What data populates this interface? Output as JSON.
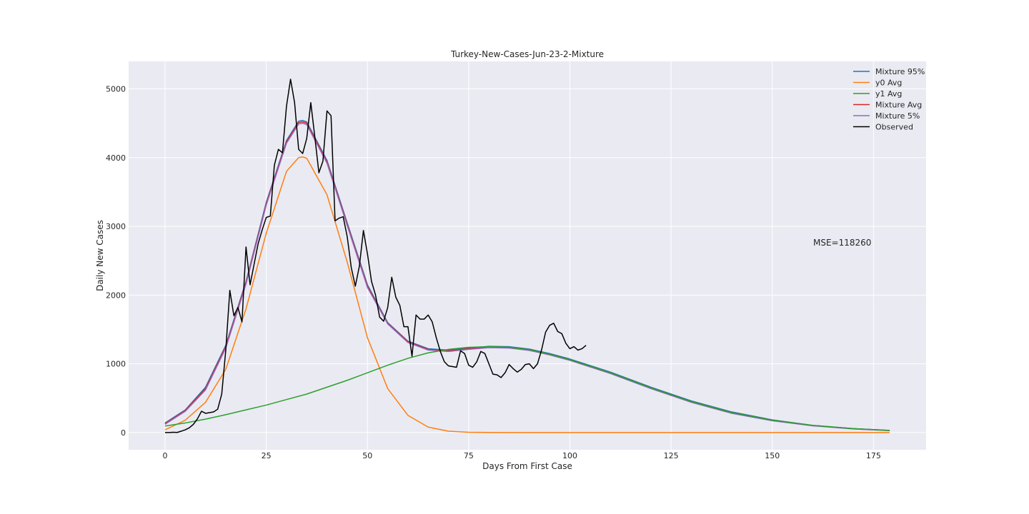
{
  "chart_data": {
    "type": "line",
    "title": "Turkey-New-Cases-Jun-23-2-Mixture",
    "xlabel": "Days From First Case",
    "ylabel": "Daily New Cases",
    "xlim": [
      -9,
      188
    ],
    "ylim": [
      -250,
      5400
    ],
    "xticks": [
      0,
      25,
      50,
      75,
      100,
      125,
      150,
      175
    ],
    "yticks": [
      0,
      1000,
      2000,
      3000,
      4000,
      5000
    ],
    "grid": true,
    "legend_position": "top-right",
    "annotation": "MSE=118260",
    "series": [
      {
        "name": "Mixture 95%",
        "color": "#1f77b4",
        "x": [
          0,
          5,
          10,
          15,
          20,
          25,
          30,
          33,
          34,
          35,
          40,
          45,
          50,
          55,
          60,
          65,
          70,
          75,
          80,
          85,
          90,
          95,
          100,
          110,
          120,
          130,
          140,
          150,
          160,
          170,
          179
        ],
        "y": [
          140,
          330,
          660,
          1270,
          2200,
          3350,
          4250,
          4530,
          4540,
          4520,
          3960,
          3050,
          2150,
          1600,
          1330,
          1220,
          1200,
          1230,
          1255,
          1250,
          1215,
          1150,
          1070,
          880,
          660,
          460,
          300,
          185,
          105,
          58,
          32
        ]
      },
      {
        "name": "y0 Avg",
        "color": "#ff7f0e",
        "x": [
          0,
          5,
          10,
          15,
          20,
          25,
          30,
          33,
          34,
          35,
          40,
          45,
          50,
          55,
          60,
          65,
          70,
          75,
          80,
          90,
          100,
          120,
          150,
          179
        ],
        "y": [
          40,
          180,
          440,
          920,
          1800,
          2900,
          3800,
          4000,
          4010,
          3990,
          3460,
          2480,
          1380,
          640,
          250,
          80,
          20,
          5,
          2,
          0,
          0,
          0,
          0,
          0
        ]
      },
      {
        "name": "y1 Avg",
        "color": "#2ca02c",
        "x": [
          0,
          5,
          10,
          15,
          20,
          25,
          30,
          35,
          40,
          45,
          50,
          55,
          60,
          65,
          70,
          75,
          80,
          85,
          90,
          95,
          100,
          110,
          120,
          130,
          140,
          150,
          160,
          170,
          179
        ],
        "y": [
          95,
          140,
          195,
          260,
          330,
          400,
          480,
          560,
          660,
          760,
          870,
          980,
          1080,
          1160,
          1210,
          1240,
          1250,
          1240,
          1205,
          1140,
          1060,
          870,
          650,
          450,
          290,
          180,
          105,
          58,
          30
        ]
      },
      {
        "name": "Mixture Avg",
        "color": "#d62728",
        "x": [
          0,
          5,
          10,
          15,
          20,
          25,
          30,
          33,
          34,
          35,
          40,
          45,
          50,
          55,
          60,
          65,
          70,
          75,
          80,
          85,
          90,
          95,
          100,
          110,
          120,
          130,
          140,
          150,
          160,
          170,
          179
        ],
        "y": [
          130,
          320,
          640,
          1250,
          2180,
          3330,
          4230,
          4510,
          4520,
          4500,
          3940,
          3030,
          2130,
          1590,
          1320,
          1210,
          1190,
          1220,
          1245,
          1240,
          1205,
          1140,
          1060,
          870,
          650,
          450,
          290,
          180,
          102,
          56,
          30
        ]
      },
      {
        "name": "Mixture 5%",
        "color": "#9467bd",
        "x": [
          0,
          5,
          10,
          15,
          20,
          25,
          30,
          33,
          34,
          35,
          40,
          45,
          50,
          55,
          60,
          65,
          70,
          75,
          80,
          85,
          90,
          95,
          100,
          110,
          120,
          130,
          140,
          150,
          160,
          170,
          179
        ],
        "y": [
          120,
          310,
          620,
          1230,
          2160,
          3310,
          4210,
          4490,
          4500,
          4480,
          3920,
          3010,
          2110,
          1580,
          1310,
          1200,
          1180,
          1210,
          1235,
          1230,
          1195,
          1130,
          1050,
          860,
          640,
          440,
          280,
          172,
          98,
          53,
          28
        ]
      },
      {
        "name": "Observed",
        "color": "#000000",
        "x": [
          0,
          1,
          2,
          3,
          4,
          5,
          6,
          7,
          8,
          9,
          10,
          11,
          12,
          13,
          14,
          15,
          16,
          17,
          18,
          19,
          20,
          21,
          22,
          23,
          24,
          25,
          26,
          27,
          28,
          29,
          30,
          31,
          32,
          33,
          34,
          35,
          36,
          37,
          38,
          39,
          40,
          41,
          42,
          43,
          44,
          45,
          46,
          47,
          48,
          49,
          50,
          51,
          52,
          53,
          54,
          55,
          56,
          57,
          58,
          59,
          60,
          61,
          62,
          63,
          64,
          65,
          66,
          67,
          68,
          69,
          70,
          71,
          72,
          73,
          74,
          75,
          76,
          77,
          78,
          79,
          80,
          81,
          82,
          83,
          84,
          85,
          86,
          87,
          88,
          89,
          90,
          91,
          92,
          93,
          94,
          95,
          96,
          97,
          98,
          99,
          100,
          101,
          102,
          103,
          104
        ],
        "y": [
          0,
          0,
          5,
          2,
          20,
          40,
          70,
          120,
          200,
          310,
          280,
          290,
          300,
          340,
          560,
          1200,
          2070,
          1700,
          1820,
          1610,
          2700,
          2150,
          2450,
          2750,
          2950,
          3130,
          3150,
          3890,
          4120,
          4070,
          4750,
          5140,
          4800,
          4120,
          4060,
          4280,
          4800,
          4300,
          3780,
          3950,
          4680,
          4610,
          3080,
          3120,
          3140,
          2850,
          2400,
          2130,
          2420,
          2940,
          2600,
          2200,
          2000,
          1680,
          1620,
          1820,
          2260,
          1970,
          1850,
          1540,
          1540,
          1110,
          1710,
          1650,
          1650,
          1710,
          1610,
          1380,
          1180,
          1030,
          970,
          960,
          950,
          1190,
          1150,
          980,
          950,
          1030,
          1180,
          1150,
          1000,
          850,
          840,
          800,
          870,
          990,
          930,
          880,
          920,
          990,
          1000,
          930,
          1000,
          1200,
          1460,
          1560,
          1590,
          1470,
          1440,
          1300,
          1220,
          1250,
          1200,
          1220,
          1270
        ]
      }
    ]
  }
}
